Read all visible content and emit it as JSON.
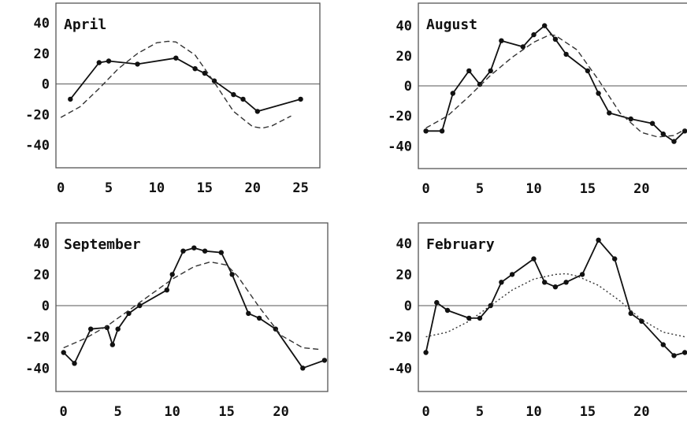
{
  "chart_data": [
    {
      "type": "line",
      "title": "April",
      "x_ticks": [
        0,
        5,
        10,
        15,
        20,
        25
      ],
      "y_ticks": [
        40,
        20,
        0,
        -20,
        -40
      ],
      "xlim": [
        -0.5,
        27
      ],
      "ylim": [
        -55,
        53
      ],
      "series": [
        {
          "style": "solid-markers",
          "x": [
            1,
            4,
            5,
            8,
            12,
            14,
            15,
            16,
            18,
            19,
            20.5,
            25
          ],
          "y": [
            -10,
            14,
            15,
            13,
            17,
            10,
            7,
            2,
            -7,
            -10,
            -18,
            -10
          ]
        },
        {
          "style": "dashed",
          "x": [
            0,
            2,
            4,
            6,
            8,
            10,
            11.2,
            12,
            14,
            16,
            18,
            20,
            21,
            22,
            24
          ],
          "y": [
            -22,
            -15,
            -3,
            10,
            20,
            27,
            28,
            27.5,
            19,
            1,
            -18,
            -28,
            -29,
            -27.5,
            -21
          ]
        }
      ]
    },
    {
      "type": "line",
      "title": "August",
      "x_ticks": [
        0,
        5,
        10,
        15,
        20
      ],
      "y_ticks": [
        40,
        20,
        0,
        -20,
        -40
      ],
      "xlim": [
        -0.7,
        24.5
      ],
      "ylim": [
        -55,
        55
      ],
      "series": [
        {
          "style": "solid-markers",
          "x": [
            0,
            1.5,
            2.5,
            4,
            5,
            6,
            7,
            9,
            10,
            11,
            12,
            13,
            15,
            16,
            17,
            19,
            21,
            22,
            23,
            24
          ],
          "y": [
            -30,
            -30,
            -5,
            10,
            1,
            10,
            30,
            26,
            34,
            40,
            31,
            21,
            10,
            -5,
            -18,
            -22,
            -25,
            -32,
            -37,
            -30
          ]
        },
        {
          "style": "dashed",
          "x": [
            0,
            2,
            4,
            6,
            8,
            10,
            11.5,
            12,
            14,
            16,
            18,
            20,
            21.5,
            23,
            24
          ],
          "y": [
            -28,
            -20,
            -7,
            7,
            19,
            29,
            34,
            33.5,
            24,
            4,
            -18,
            -31,
            -34,
            -33,
            -29
          ]
        }
      ]
    },
    {
      "type": "line",
      "title": "September",
      "x_ticks": [
        0,
        5,
        10,
        15,
        20
      ],
      "y_ticks": [
        40,
        20,
        0,
        -20,
        -40
      ],
      "xlim": [
        -0.7,
        24.3
      ],
      "ylim": [
        -55,
        53
      ],
      "series": [
        {
          "style": "solid-markers",
          "x": [
            0,
            1,
            2.5,
            4,
            4.5,
            5,
            6,
            7,
            9.5,
            10,
            11,
            12,
            13,
            14.5,
            15.5,
            17,
            18,
            19.5,
            22,
            24
          ],
          "y": [
            -30,
            -37,
            -15,
            -14,
            -25,
            -15,
            -5,
            0,
            10,
            20,
            35,
            37,
            35,
            34,
            20,
            -5,
            -8,
            -15,
            -40,
            -35
          ]
        },
        {
          "style": "dashed",
          "x": [
            0,
            2,
            4,
            6,
            8,
            10,
            12,
            13.5,
            15,
            16,
            18,
            20,
            22,
            23.5
          ],
          "y": [
            -27,
            -21,
            -13,
            -3,
            7,
            17,
            25,
            28,
            26,
            19,
            -1,
            -19,
            -27,
            -28
          ]
        }
      ]
    },
    {
      "type": "line",
      "title": "February",
      "x_ticks": [
        0,
        5,
        10,
        15,
        20
      ],
      "y_ticks": [
        40,
        20,
        0,
        -20,
        -40
      ],
      "xlim": [
        -0.7,
        24.5
      ],
      "ylim": [
        -55,
        53
      ],
      "series": [
        {
          "style": "solid-markers",
          "x": [
            0,
            1,
            2,
            4,
            5,
            6,
            7,
            8,
            10,
            11,
            12,
            13,
            14.5,
            16,
            17.5,
            19,
            20,
            22,
            23,
            24
          ],
          "y": [
            -30,
            2,
            -3,
            -8,
            -8,
            0,
            15,
            20,
            30,
            15,
            12,
            15,
            20,
            42,
            30,
            -5,
            -10,
            -25,
            -32,
            -30
          ]
        },
        {
          "style": "dotted",
          "x": [
            0,
            2,
            4,
            6,
            8,
            10,
            12,
            13,
            14,
            16,
            18,
            20,
            22,
            24
          ],
          "y": [
            -20,
            -17,
            -10,
            0,
            10,
            17,
            20,
            20.5,
            19,
            13,
            3,
            -9,
            -17,
            -20
          ]
        }
      ]
    }
  ]
}
